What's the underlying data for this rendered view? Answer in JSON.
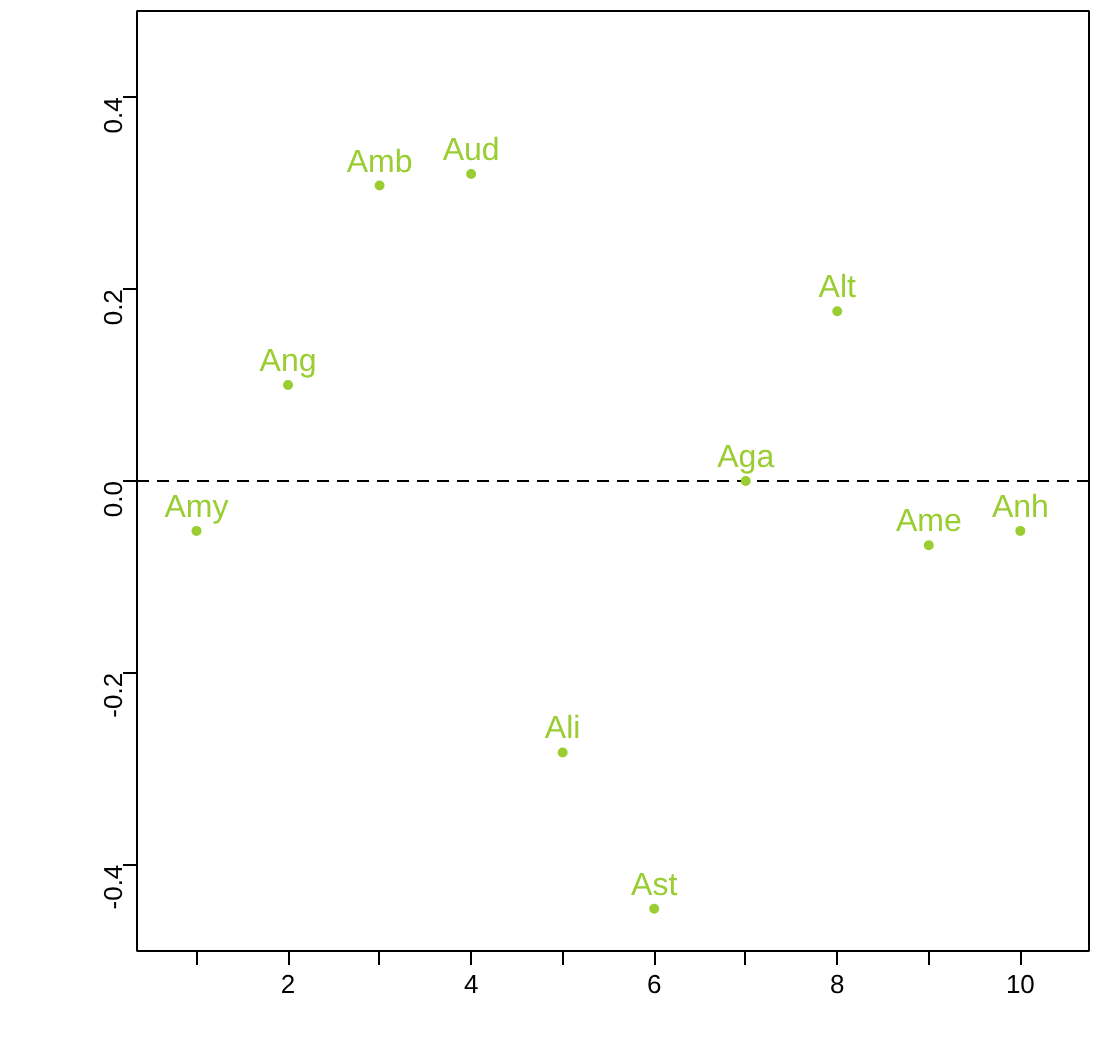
{
  "chart_data": {
    "type": "scatter",
    "x": [
      1,
      2,
      3,
      4,
      5,
      6,
      7,
      8,
      9,
      10
    ],
    "series": [
      {
        "color": "#9acd32",
        "values": [
          -0.052,
          0.1,
          0.308,
          0.32,
          -0.283,
          -0.446,
          0.0,
          0.177,
          -0.067,
          -0.052
        ],
        "value_labels": [
          "Amy",
          "Ang",
          "Amb",
          "Aud",
          "Ali",
          "Ast",
          "Aga",
          "Alt",
          "Ame",
          "Anh"
        ]
      }
    ],
    "marker": "circle",
    "xlim": [
      0.35,
      10.75
    ],
    "ylim": [
      -0.49,
      0.49
    ],
    "xticks": [
      {
        "value": 1,
        "label": null
      },
      2,
      {
        "value": 3,
        "label": null
      },
      4,
      {
        "value": 5,
        "label": null
      },
      6,
      {
        "value": 7,
        "label": null
      },
      8,
      {
        "value": 9,
        "label": null
      },
      10
    ],
    "yticks": [
      -0.4,
      -0.2,
      {
        "value": 0,
        "label": "0.0"
      },
      0.2,
      0.4
    ],
    "ref_lines": [
      {
        "axis": "y",
        "value": 0,
        "label": null,
        "line_style": "dashed",
        "color": "#000000"
      }
    ],
    "grid": false
  }
}
